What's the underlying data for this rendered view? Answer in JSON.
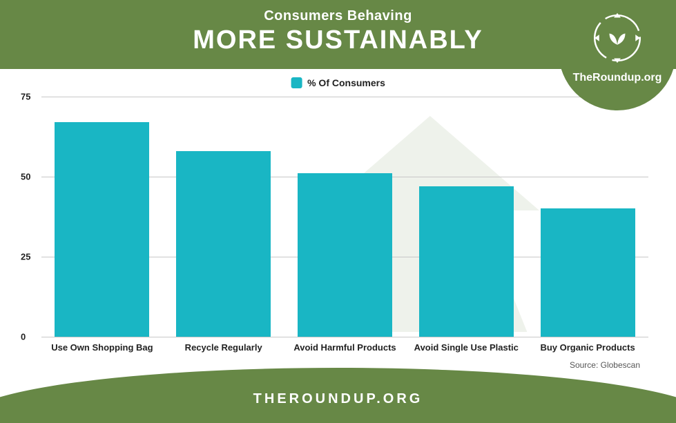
{
  "header": {
    "subtitle": "Consumers Behaving",
    "title": "MORE SUSTAINABLY",
    "bg_color": "#678846",
    "text_color": "#ffffff"
  },
  "logo": {
    "site_name": "TheRoundup.org",
    "ring_color": "#ffffff",
    "leaf_color": "#ffffff",
    "bg_color": "#678846"
  },
  "chart": {
    "type": "bar",
    "legend_label": "% Of Consumers",
    "categories": [
      "Use Own Shopping Bag",
      "Recycle Regularly",
      "Avoid Harmful Products",
      "Avoid Single Use Plastic",
      "Buy Organic Products"
    ],
    "values": [
      67,
      58,
      51,
      47,
      40
    ],
    "bar_color": "#19b6c4",
    "ylim": [
      0,
      75
    ],
    "yticks": [
      0,
      25,
      50,
      75
    ],
    "grid_color": "#c7c7c7",
    "background_color": "#ffffff",
    "label_fontsize": 13,
    "label_fontweight": 700,
    "bar_width_ratio": 0.78,
    "watermark_color": "#d9e0d0"
  },
  "source": {
    "label": "Source: Globescan"
  },
  "footer": {
    "text": "THEROUNDUP.ORG",
    "bg_color": "#678846",
    "text_color": "#ffffff"
  }
}
